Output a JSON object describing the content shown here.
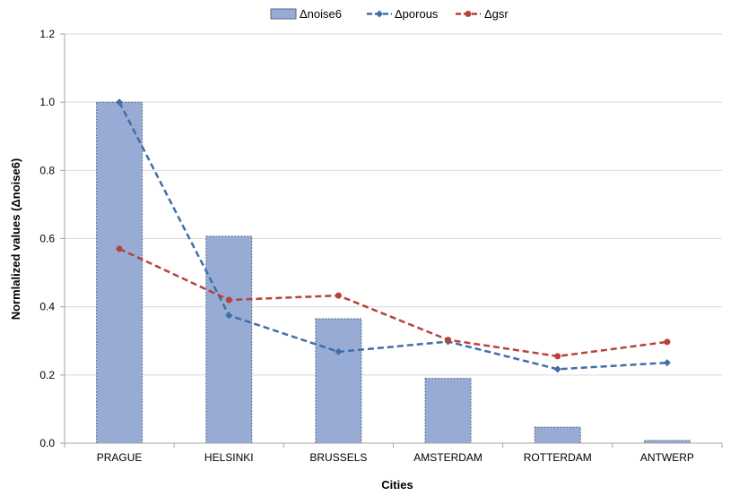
{
  "chart_data": {
    "type": "bar",
    "categories": [
      "PRAGUE",
      "HELSINKI",
      "BRUSSELS",
      "AMSTERDAM",
      "ROTTERDAM",
      "ANTWERP"
    ],
    "series": [
      {
        "name": "Δnoise6",
        "kind": "bar",
        "values": [
          1.0,
          0.607,
          0.365,
          0.19,
          0.047,
          0.008
        ]
      },
      {
        "name": "Δporous",
        "kind": "line",
        "values": [
          1.0,
          0.375,
          0.268,
          0.298,
          0.217,
          0.236
        ]
      },
      {
        "name": "Δgsr",
        "kind": "line",
        "values": [
          0.57,
          0.42,
          0.433,
          0.303,
          0.255,
          0.297
        ]
      }
    ],
    "xlabel": "Cities",
    "ylabel": "Normlalized values (Δnoise6)",
    "ylim": [
      0,
      1.2
    ],
    "yticks": [
      "0.0",
      "0.2",
      "0.4",
      "0.6",
      "0.8",
      "1.0",
      "1.2"
    ],
    "grid": true,
    "legend_position": "top-center",
    "colors": {
      "bar_fill": "#97abd5",
      "bar_stroke": "#5a6a8a",
      "porous": "#3e6fa8",
      "gsr": "#b8413b",
      "grid": "#d9d9d9",
      "axis": "#a6a6a6"
    }
  }
}
